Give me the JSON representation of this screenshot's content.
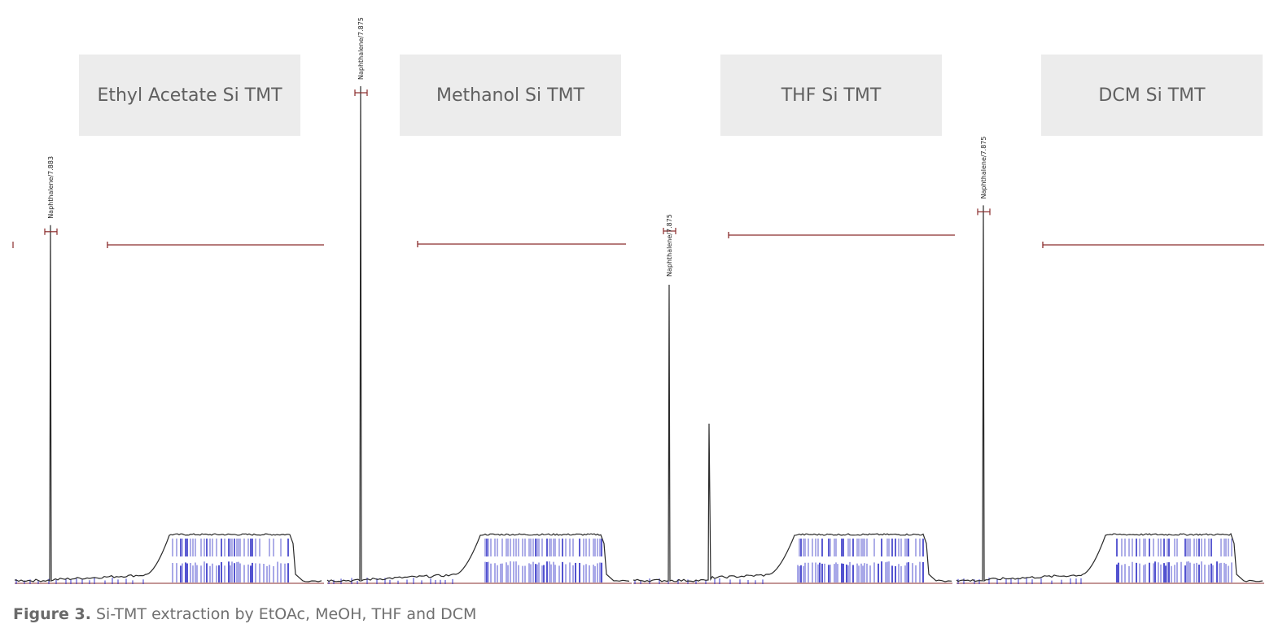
{
  "caption": {
    "prefix": "Figure 3.",
    "text": " Si-TMT extraction by EtOAc, MeOH, THF and DCM"
  },
  "colors": {
    "trace": "#2a2a2a",
    "cluster": "#3535c8",
    "bracket": "#8a2c2c",
    "label_bg": "#ececec",
    "label_text": "#606060"
  },
  "chart_data": [
    {
      "type": "line",
      "title": "Ethyl Acetate Si TMT",
      "peak_label": "Naphthalene/7.883",
      "peak_relative_height": 0.72,
      "secondary_peak_relative_height": 0,
      "hump_relative_height": 0.1
    },
    {
      "type": "line",
      "title": "Methanol Si TMT",
      "peak_label": "Naphthalene/7.875",
      "peak_relative_height": 1.0,
      "secondary_peak_relative_height": 0,
      "hump_relative_height": 0.1
    },
    {
      "type": "line",
      "title": "THF Si TMT",
      "peak_label": "Naphthalene/7.875",
      "peak_relative_height": 0.6,
      "secondary_peak_relative_height": 0.32,
      "hump_relative_height": 0.1
    },
    {
      "type": "line",
      "title": "DCM Si TMT",
      "peak_label": "Naphthalene/7.875",
      "peak_relative_height": 0.76,
      "secondary_peak_relative_height": 0,
      "hump_relative_height": 0.1
    }
  ]
}
